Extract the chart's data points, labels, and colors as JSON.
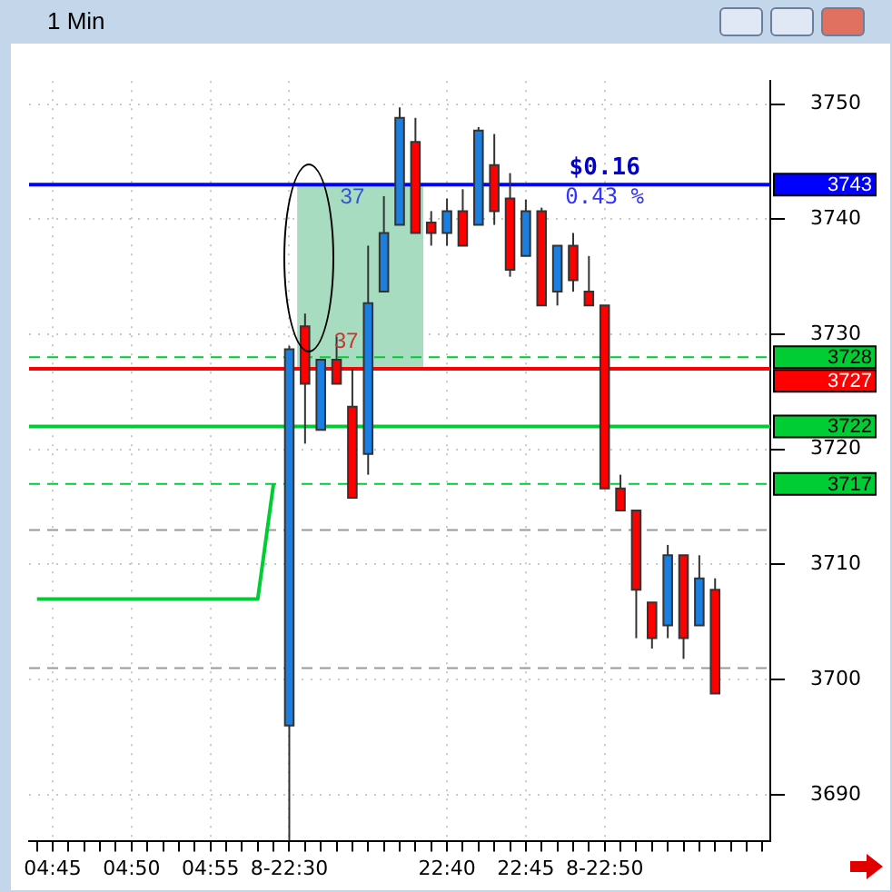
{
  "chart_data": {
    "type": "candlestick",
    "title": "1 Min",
    "categories": [
      null,
      "04:45",
      null,
      null,
      null,
      null,
      "04:50",
      null,
      null,
      null,
      null,
      "04:55",
      null,
      null,
      null,
      null,
      "8-22:30",
      null,
      null,
      null,
      null,
      null,
      null,
      null,
      null,
      null,
      "22:40",
      null,
      null,
      null,
      null,
      "22:45",
      null,
      null,
      null,
      null,
      "8-22:50",
      null,
      null,
      null,
      null,
      null,
      null,
      null,
      null,
      null,
      null
    ],
    "ohlc": [
      null,
      null,
      null,
      null,
      null,
      null,
      null,
      null,
      null,
      null,
      null,
      null,
      null,
      null,
      null,
      null,
      [
        3696,
        3729,
        3686,
        3728.7
      ],
      [
        3730.7,
        3731.8,
        3720.5,
        3725.7
      ],
      [
        3721.7,
        3727.8,
        3721.7,
        3727.8
      ],
      [
        3727.8,
        3729.8,
        3725.7,
        3725.7
      ],
      [
        3723.7,
        3727,
        3715.8,
        3715.8
      ],
      [
        3719.6,
        3737.7,
        3717.8,
        3732.7
      ],
      [
        3733.7,
        3742,
        3733.7,
        3738.8
      ],
      [
        3739.5,
        3749.7,
        3739.5,
        3748.8
      ],
      [
        3746.7,
        3748.8,
        3738.8,
        3738.8
      ],
      [
        3739.7,
        3740.7,
        3737.7,
        3738.8
      ],
      [
        3738.8,
        3741.8,
        3737.7,
        3740.7
      ],
      [
        3740.7,
        3742.6,
        3737.7,
        3737.7
      ],
      [
        3739.5,
        3748,
        3739.5,
        3747.7
      ],
      [
        3744.7,
        3747.4,
        3739.5,
        3740.7
      ],
      [
        3741.8,
        3744,
        3735,
        3735.6
      ],
      [
        3736.8,
        3741.7,
        3736.8,
        3740.7
      ],
      [
        3740.7,
        3741,
        3732.5,
        3732.5
      ],
      [
        3733.7,
        3737.7,
        3732.5,
        3737.7
      ],
      [
        3737.7,
        3738.8,
        3733.7,
        3734.7
      ],
      [
        3733.7,
        3736.8,
        3732.5,
        3732.5
      ],
      [
        3732.5,
        3732.5,
        3716.6,
        3716.6
      ],
      [
        3716.6,
        3717.8,
        3714.7,
        3714.7
      ],
      [
        3714.7,
        3714.7,
        3703.6,
        3707.8
      ],
      [
        3706.7,
        3706.7,
        3702.7,
        3703.6
      ],
      [
        3704.7,
        3711.7,
        3703.6,
        3710.8
      ],
      [
        3710.8,
        3710.8,
        3701.8,
        3703.6
      ],
      [
        3704.7,
        3710.8,
        3704.7,
        3708.8
      ],
      [
        3707.8,
        3708.8,
        3698.8,
        3698.8
      ],
      null,
      null,
      null
    ],
    "colors": [
      null,
      null,
      null,
      null,
      null,
      null,
      null,
      null,
      null,
      null,
      null,
      null,
      null,
      null,
      null,
      null,
      "#1a7fe0",
      "#ff0000",
      "#1a7fe0",
      "#ff0000",
      "#ff0000",
      "#1a7fe0",
      "#1a7fe0",
      "#1a7fe0",
      "#ff0000",
      "#ff0000",
      "#1a7fe0",
      "#ff0000",
      "#1a7fe0",
      "#ff0000",
      "#ff0000",
      "#1a7fe0",
      "#ff0000",
      "#1a7fe0",
      "#ff0000",
      "#ff0000",
      "#ff0000",
      "#ff0000",
      "#ff0000",
      "#ff0000",
      "#1a7fe0",
      "#ff0000",
      "#1a7fe0",
      "#ff0000",
      null,
      null,
      null
    ],
    "series": [
      {
        "type": "line",
        "color": "#00cc33",
        "values": [
          3707,
          3707,
          3707,
          3707,
          3707,
          3707,
          3707,
          3707,
          3707,
          3707,
          3707,
          3707,
          3707,
          3707,
          3707,
          3717,
          null,
          null,
          null,
          null,
          null,
          null,
          null,
          null,
          null,
          null,
          null,
          null,
          null,
          null,
          null,
          null,
          null,
          null,
          null,
          null,
          null,
          null,
          null,
          null,
          null,
          null,
          null,
          null,
          null,
          null,
          null
        ]
      }
    ],
    "ylim": [
      3686,
      3752
    ],
    "yticks": [
      3690,
      3700,
      3710,
      3720,
      3730,
      3740,
      3750
    ],
    "grid": true,
    "ref_lines": [
      {
        "axis": "y",
        "value": 3743,
        "label": "3743",
        "color": "#0000ff"
      },
      {
        "axis": "y",
        "value": 3728,
        "label": "3728",
        "color": "#00cc33",
        "line_style": "dashed"
      },
      {
        "axis": "y",
        "value": 3727,
        "label": "3727",
        "color": "#ff0000"
      },
      {
        "axis": "y",
        "value": 3722,
        "label": "3722",
        "color": "#00cc33"
      },
      {
        "axis": "y",
        "value": 3717,
        "label": "3717",
        "color": "#00cc33",
        "line_style": "dashed"
      },
      {
        "axis": "y",
        "value": 3713,
        "color": "#999999",
        "line_style": "dashed"
      },
      {
        "axis": "y",
        "value": 3701,
        "color": "#999999",
        "line_style": "dashed"
      }
    ],
    "bands": [
      {
        "axis": "y",
        "from": 3727,
        "to": 3743,
        "color": "#a8dcc0"
      }
    ],
    "annotations": [
      "$0.16",
      "0.43 %",
      "37",
      "37"
    ]
  }
}
